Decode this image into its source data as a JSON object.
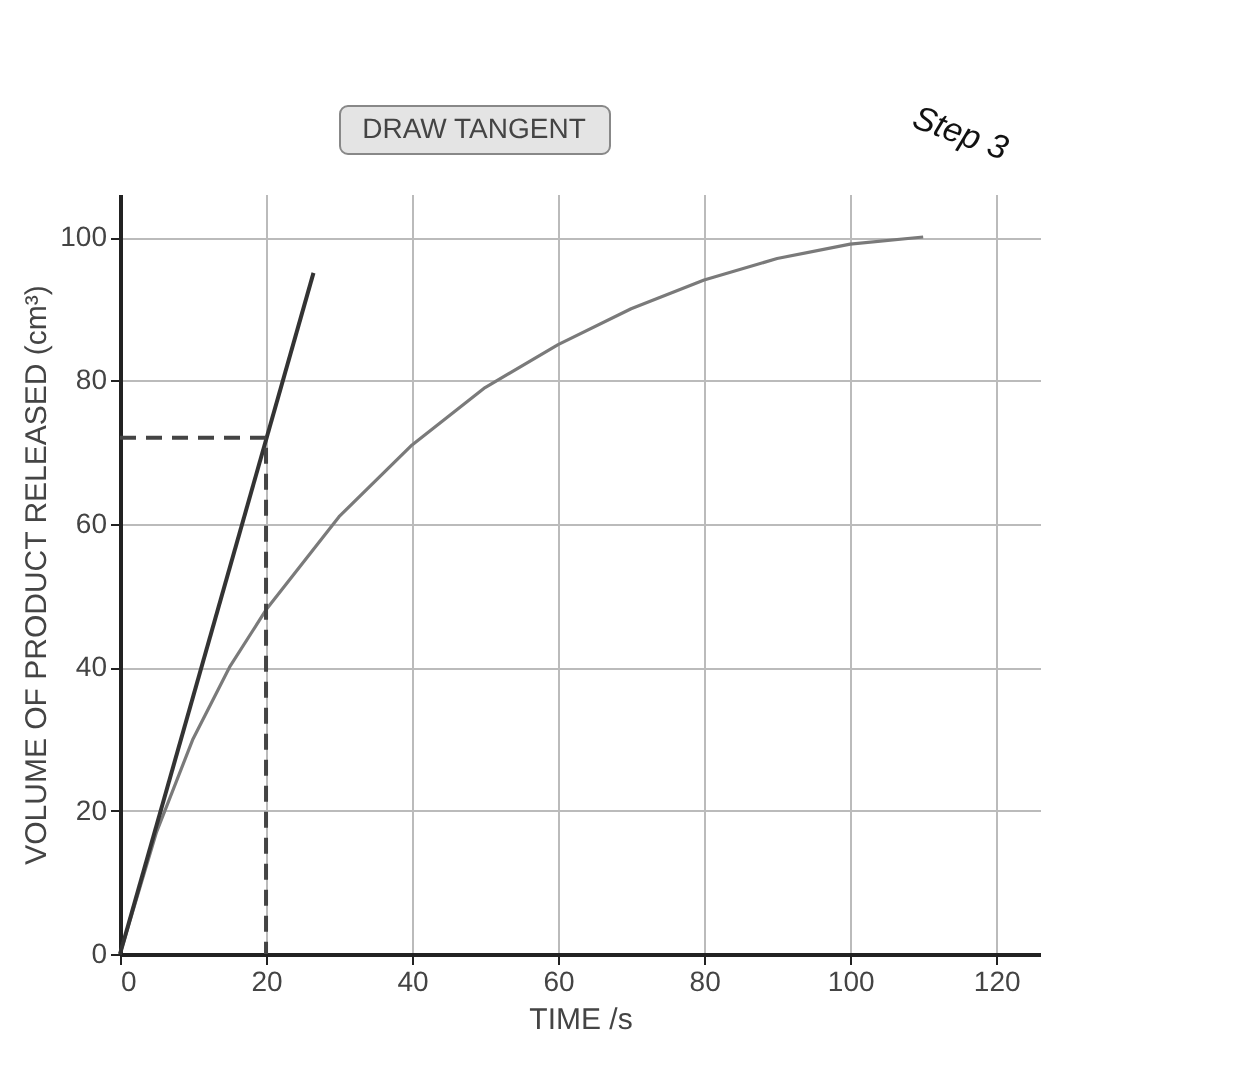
{
  "chart_data": {
    "type": "line",
    "xlabel": "TIME /s",
    "ylabel": "VOLUME OF PRODUCT RELEASED (cm³)",
    "xlim": [
      0,
      126
    ],
    "ylim": [
      0,
      106
    ],
    "xticks": [
      0,
      20,
      40,
      60,
      80,
      100,
      120
    ],
    "yticks": [
      0,
      20,
      40,
      60,
      80,
      100
    ],
    "grid": true,
    "marker": "none",
    "series": [
      {
        "color": "#7a7a7a",
        "line_style": "solid",
        "x": [
          0,
          5,
          10,
          15,
          20,
          30,
          40,
          50,
          60,
          70,
          80,
          90,
          100,
          110
        ],
        "values": [
          0,
          17,
          30,
          40,
          48,
          61,
          71,
          79,
          85,
          90,
          94,
          97,
          99,
          100
        ]
      },
      {
        "color": "#333333",
        "line_style": "solid",
        "x": [
          0,
          26.5
        ],
        "values": [
          0,
          95
        ]
      },
      {
        "color": "#444444",
        "line_style": "dashed",
        "x": [
          0,
          20,
          20
        ],
        "values": [
          72,
          72,
          0
        ]
      }
    ],
    "annotations": [
      "DRAW TANGENT",
      "Step 3"
    ]
  }
}
